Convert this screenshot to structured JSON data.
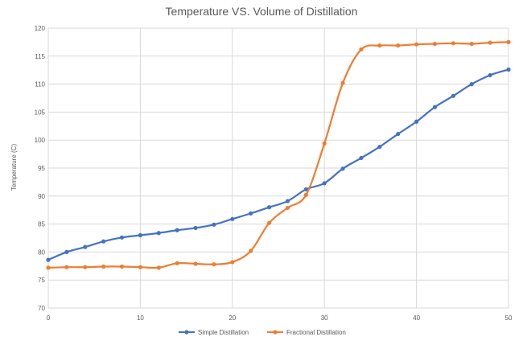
{
  "chart_data": {
    "type": "line",
    "title": "Temperature VS. Volume of Distillation",
    "xlabel": "",
    "ylabel": "Temperature (C)",
    "xlim": [
      0,
      50
    ],
    "ylim": [
      70,
      120
    ],
    "x_ticks": [
      0,
      10,
      20,
      30,
      40,
      50
    ],
    "y_ticks": [
      70,
      75,
      80,
      85,
      90,
      95,
      100,
      105,
      110,
      115,
      120
    ],
    "grid": true,
    "legend_position": "bottom",
    "series": [
      {
        "name": "Simple Distillation",
        "color": "#4472c4",
        "x": [
          0,
          2,
          4,
          6,
          8,
          10,
          12,
          14,
          16,
          18,
          20,
          22,
          24,
          26,
          28,
          30,
          32,
          34,
          36,
          38,
          40,
          42,
          44,
          46,
          48,
          50
        ],
        "y": [
          78.6,
          80.0,
          80.9,
          81.9,
          82.6,
          83.0,
          83.4,
          83.9,
          84.3,
          84.9,
          85.9,
          86.9,
          88.0,
          89.1,
          91.2,
          92.3,
          94.9,
          96.8,
          98.8,
          101.1,
          103.3,
          105.9,
          107.9,
          110.0,
          111.6,
          112.6
        ]
      },
      {
        "name": "Fractional Distillation",
        "color": "#ed7d31",
        "x": [
          0,
          2,
          4,
          6,
          8,
          10,
          12,
          14,
          16,
          18,
          20,
          22,
          24,
          26,
          28,
          30,
          32,
          34,
          36,
          38,
          40,
          42,
          44,
          46,
          48,
          50
        ],
        "y": [
          77.2,
          77.3,
          77.3,
          77.4,
          77.4,
          77.3,
          77.2,
          78.0,
          77.9,
          77.8,
          78.2,
          80.2,
          85.2,
          87.9,
          90.2,
          99.4,
          110.2,
          116.2,
          116.9,
          116.9,
          117.1,
          117.2,
          117.3,
          117.2,
          117.4,
          117.5
        ]
      }
    ]
  }
}
